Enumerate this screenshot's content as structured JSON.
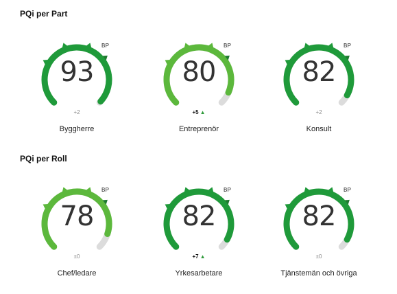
{
  "sections": [
    {
      "title": "PQi per Part",
      "gauges": [
        {
          "label": "Byggherre",
          "score": "93",
          "delta": "+2",
          "delta_positive": false,
          "bp_label": "BP",
          "fill_fraction": 0.93,
          "color": "#1f9a3a"
        },
        {
          "label": "Entreprenör",
          "score": "80",
          "delta": "+5",
          "delta_positive": true,
          "bp_label": "BP",
          "fill_fraction": 0.8,
          "color": "#5cb83c"
        },
        {
          "label": "Konsult",
          "score": "82",
          "delta": "+2",
          "delta_positive": false,
          "bp_label": "BP",
          "fill_fraction": 0.82,
          "color": "#1f9a3a"
        }
      ]
    },
    {
      "title": "PQi per Roll",
      "gauges": [
        {
          "label": "Chef/ledare",
          "score": "78",
          "delta": "±0",
          "delta_positive": false,
          "bp_label": "BP",
          "fill_fraction": 0.78,
          "color": "#5cb83c"
        },
        {
          "label": "Yrkesarbetare",
          "score": "82",
          "delta": "+7",
          "delta_positive": true,
          "bp_label": "BP",
          "fill_fraction": 0.82,
          "color": "#1f9a3a"
        },
        {
          "label": "Tjänstemän och övriga",
          "score": "82",
          "delta": "±0",
          "delta_positive": false,
          "bp_label": "BP",
          "fill_fraction": 0.82,
          "color": "#1f9a3a"
        }
      ]
    }
  ],
  "colors": {
    "track": "#dcdcdc",
    "marker": "#2e9a3a",
    "arrow_up": "#2e9a3a"
  },
  "delta_arrow_glyph": "▲"
}
